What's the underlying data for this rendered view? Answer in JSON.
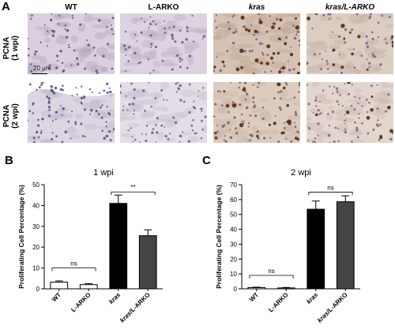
{
  "panel_a": {
    "letter": "A",
    "columns": [
      "WT",
      "L-ARKO",
      "kras",
      "kras/L-ARKO"
    ],
    "rows": [
      {
        "label_line1": "PCNA",
        "label_line2": "(1 wpi)"
      },
      {
        "label_line1": "PCNA",
        "label_line2": "(2 wpi)"
      }
    ],
    "scale_bar": "20 μm"
  },
  "chart_data": [
    {
      "panel": "B",
      "type": "bar",
      "title": "1 wpi",
      "ylabel": "Proliferating Cell Percentage (%)",
      "xlabel": "",
      "categories": [
        "WT",
        "L-ARKO",
        "kras",
        "kras/L-ARKO"
      ],
      "values": [
        3.2,
        2.0,
        41.0,
        25.5
      ],
      "errors": [
        0.6,
        0.5,
        4.0,
        2.8
      ],
      "bar_colors": [
        "#ffffff",
        "#ffffff",
        "#000000",
        "#444444"
      ],
      "ylim": [
        0,
        50
      ],
      "yticks": [
        0,
        10,
        20,
        30,
        40,
        50
      ],
      "annotations": [
        {
          "label": "ns",
          "from": 0,
          "to": 1,
          "y": 10
        },
        {
          "label": "**",
          "from": 2,
          "to": 3,
          "y": 46.5
        }
      ]
    },
    {
      "panel": "C",
      "type": "bar",
      "title": "2 wpi",
      "ylabel": "Proliferating Cell Percentage (%)",
      "xlabel": "",
      "categories": [
        "WT",
        "L-ARKO",
        "kras",
        "kras/L-ARKO"
      ],
      "values": [
        0.8,
        0.6,
        53.5,
        58.5
      ],
      "errors": [
        0.3,
        0.3,
        5.5,
        4.0
      ],
      "bar_colors": [
        "#ffffff",
        "#ffffff",
        "#000000",
        "#444444"
      ],
      "ylim": [
        0,
        70
      ],
      "yticks": [
        0,
        10,
        20,
        30,
        40,
        50,
        60,
        70
      ],
      "annotations": [
        {
          "label": "ns",
          "from": 0,
          "to": 1,
          "y": 9
        },
        {
          "label": "ns",
          "from": 2,
          "to": 3,
          "y": 65
        }
      ]
    }
  ]
}
